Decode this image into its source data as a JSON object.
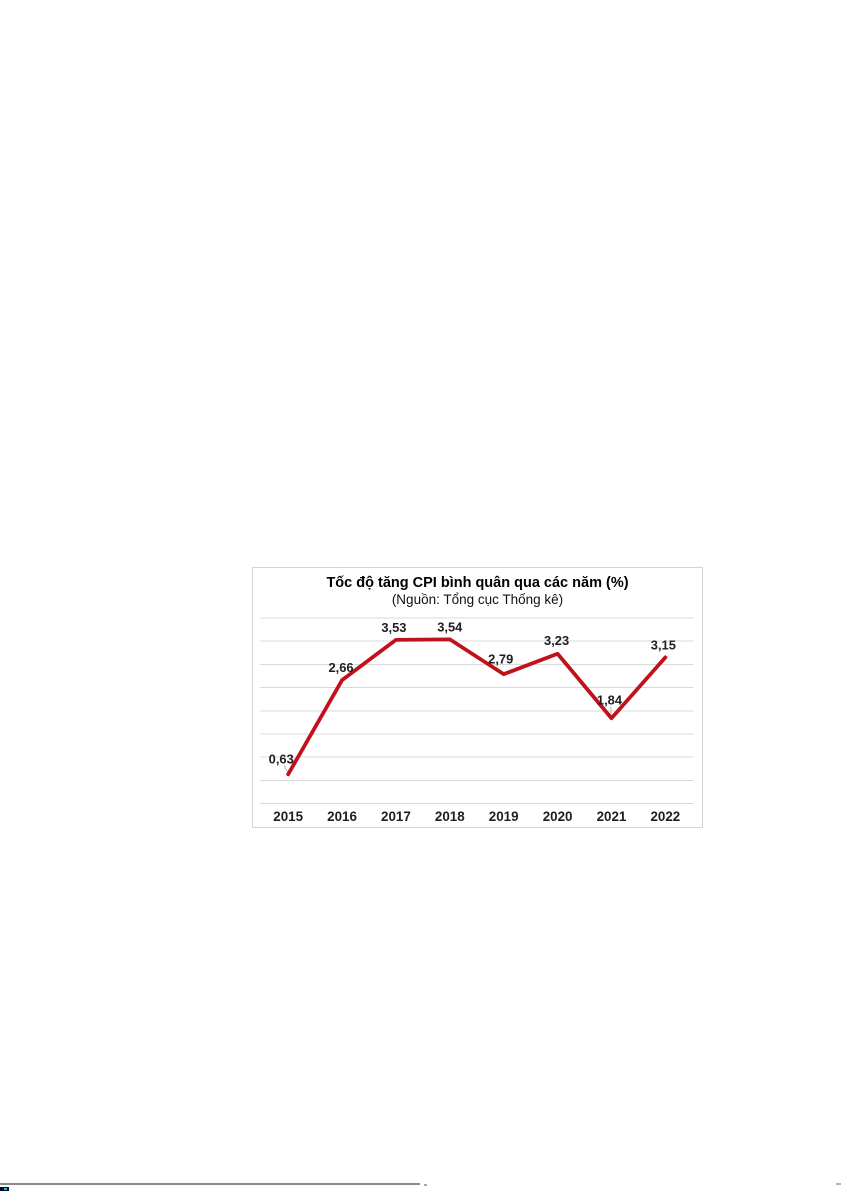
{
  "chart": {
    "line_color": "#c0121d",
    "grid_color": "#d9d9d9",
    "border_color": "#d4d4d4",
    "data_label_color": "#1f1f1f",
    "axis_label_color": "#1f1f1f",
    "leader_line_color": "#a6a6a6"
  },
  "chart_data": {
    "type": "line",
    "title": "Tốc độ tăng CPI bình quân qua các năm (%)",
    "subtitle": "(Nguồn: Tổng cục Thống kê)",
    "categories": [
      "2015",
      "2016",
      "2017",
      "2018",
      "2019",
      "2020",
      "2021",
      "2022"
    ],
    "values": [
      0.63,
      2.66,
      3.53,
      3.54,
      2.79,
      3.23,
      1.84,
      3.15
    ],
    "data_labels": [
      "0,63",
      "2,66",
      "3,53",
      "3,54",
      "2,79",
      "3,23",
      "1,84",
      "3,15"
    ],
    "xlabel": "",
    "ylabel": "",
    "ylim": [
      0,
      4
    ],
    "grid_step": 0.5,
    "grid": true,
    "legend_position": "none",
    "series_name": "Tốc độ tăng CPI bình quân (%)"
  },
  "page_bottom_artifacts": {
    "rule_color": "#8b8b8b",
    "corner_mark_color": "#0a0a28",
    "corner_mark_accent": "#18c0cc"
  }
}
